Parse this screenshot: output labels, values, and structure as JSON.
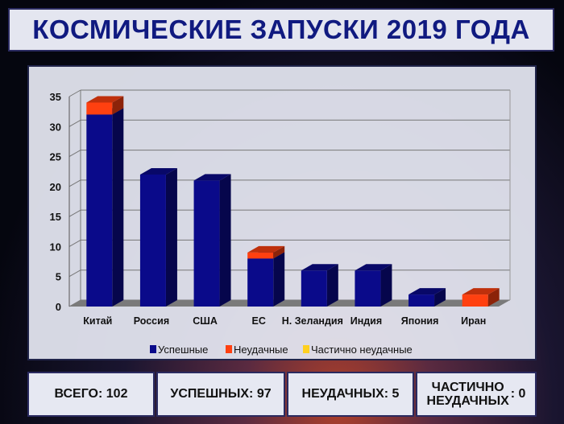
{
  "header": {
    "title": "КОСМИЧЕСКИЕ ЗАПУСКИ 2019 ГОДА"
  },
  "chart_data": {
    "type": "bar",
    "stacked": true,
    "three_d": true,
    "categories": [
      "Китай",
      "Россия",
      "США",
      "ЕС",
      "Н. Зеландия",
      "Индия",
      "Япония",
      "Иран"
    ],
    "series": [
      {
        "name": "Успешные",
        "values": [
          32,
          22,
          21,
          8,
          6,
          6,
          2,
          0
        ],
        "color": "#0a0a8a"
      },
      {
        "name": "Неудачные",
        "values": [
          2,
          0,
          0,
          1,
          0,
          0,
          0,
          2
        ],
        "color": "#ff4010"
      },
      {
        "name": "Частично неудачные",
        "values": [
          0,
          0,
          0,
          0,
          0,
          0,
          0,
          0
        ],
        "color": "#ffd020"
      }
    ],
    "ylim": [
      0,
      35
    ],
    "yticks": [
      "0",
      "5",
      "10",
      "15",
      "20",
      "25",
      "30",
      "35"
    ],
    "grid": true,
    "legend": "bottom"
  },
  "stats": {
    "total": "ВСЕГО: 102",
    "success": "УСПЕШНЫХ: 97",
    "failed": "НЕУДАЧНЫХ: 5",
    "partial_label_1": "ЧАСТИЧНО",
    "partial_label_2": "НЕУДАЧНЫХ",
    "partial_value": ": 0"
  }
}
